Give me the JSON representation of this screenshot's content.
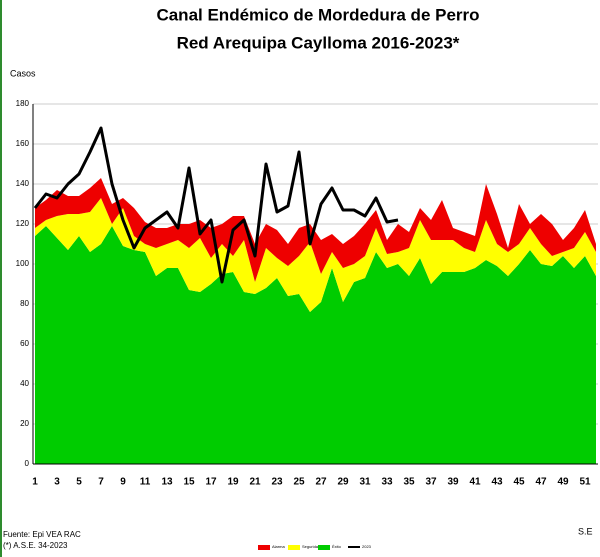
{
  "chart_data": {
    "type": "area",
    "title": "Canal Endémico de Mordedura de Perro",
    "subtitle": "Red Arequipa Caylloma 2016-2023*",
    "y_label": "Casos",
    "x_label": "S.E",
    "source": "Fuente: Epi VEA RAC",
    "note": "(*) A.S.E. 34-2023",
    "categories": [
      1,
      null,
      3,
      null,
      5,
      null,
      7,
      null,
      9,
      null,
      11,
      null,
      13,
      null,
      15,
      null,
      17,
      null,
      19,
      null,
      21,
      null,
      23,
      null,
      25,
      null,
      27,
      null,
      29,
      null,
      31,
      null,
      33,
      null,
      35,
      null,
      37,
      null,
      39,
      null,
      41,
      null,
      43,
      null,
      45,
      null,
      47,
      null,
      49,
      null,
      51,
      null
    ],
    "ylim": [
      0,
      180
    ],
    "yticks": [
      0,
      20,
      40,
      60,
      80,
      100,
      120,
      140,
      160,
      180
    ],
    "grid": true,
    "series": [
      {
        "name": "Éxito",
        "type": "area",
        "color": "#00cc00",
        "values": [
          114,
          119,
          113,
          107,
          114,
          106,
          110,
          119,
          109,
          107,
          106,
          94,
          98,
          98,
          87,
          86,
          90,
          95,
          96,
          86,
          85,
          88,
          93,
          84,
          85,
          76,
          81,
          98,
          81,
          91,
          93,
          106,
          98,
          100,
          94,
          103,
          90,
          96,
          96,
          96,
          98,
          102,
          99,
          94,
          100,
          107,
          100,
          99,
          104,
          98,
          104,
          94
        ]
      },
      {
        "name": "Seguridad",
        "type": "area",
        "color": "#ffff00",
        "values": [
          4,
          3,
          11,
          18,
          11,
          20,
          23,
          1,
          19,
          7,
          4,
          14,
          12,
          14,
          21,
          27,
          13,
          15,
          8,
          26,
          6,
          20,
          10,
          15,
          19,
          35,
          14,
          8,
          17,
          9,
          11,
          12,
          7,
          6,
          14,
          19,
          22,
          16,
          16,
          12,
          8,
          20,
          11,
          12,
          10,
          11,
          10,
          5,
          2,
          10,
          12,
          12
        ]
      },
      {
        "name": "Alarma",
        "type": "area",
        "color": "#ee0000",
        "values": [
          10,
          10,
          13,
          9,
          9,
          12,
          10,
          10,
          5,
          14,
          11,
          10,
          8,
          8,
          12,
          9,
          15,
          10,
          20,
          12,
          19,
          12,
          14,
          11,
          14,
          9,
          17,
          9,
          12,
          14,
          16,
          9,
          7,
          14,
          8,
          6,
          10,
          20,
          6,
          8,
          8,
          18,
          15,
          2,
          20,
          2,
          15,
          16,
          6,
          10,
          11,
          4
        ]
      },
      {
        "name": "2023",
        "type": "line",
        "color": "#000000",
        "values": [
          128,
          135,
          133,
          140,
          145,
          156,
          168,
          140,
          122,
          108,
          118,
          122,
          126,
          118,
          148,
          115,
          122,
          91,
          117,
          122,
          104,
          150,
          126,
          129,
          156,
          110,
          130,
          138,
          127,
          127,
          124,
          133,
          121,
          122,
          null,
          null,
          null,
          null,
          null,
          null,
          null,
          null,
          null,
          null,
          null,
          null,
          null,
          null,
          null,
          null,
          null,
          null
        ]
      }
    ]
  }
}
